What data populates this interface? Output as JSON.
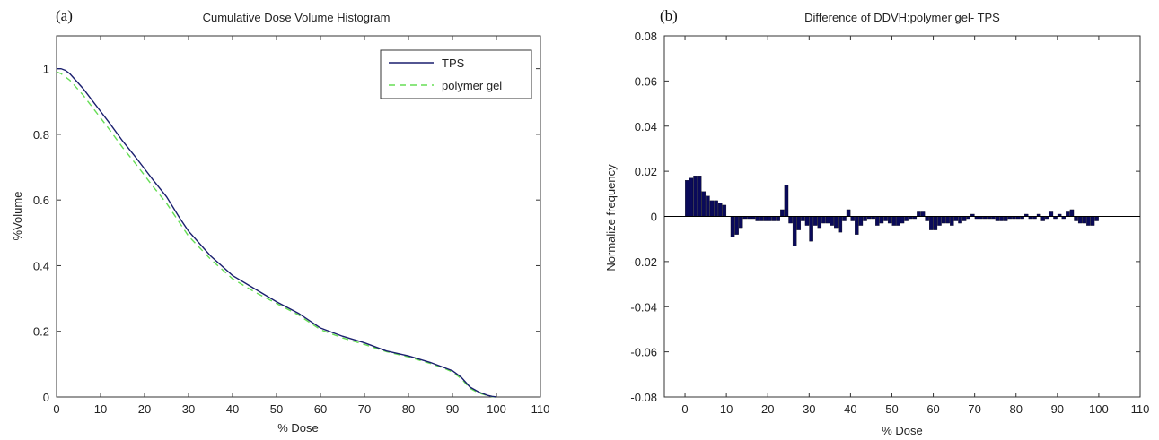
{
  "chart_data": [
    {
      "type": "line",
      "panel_label": "(a)",
      "title": "Cumulative Dose Volume Histogram",
      "xlabel": "% Dose",
      "ylabel": "%Volume",
      "xlim": [
        0,
        110
      ],
      "ylim": [
        0,
        1.1
      ],
      "xticks": [
        0,
        10,
        20,
        30,
        40,
        50,
        60,
        70,
        80,
        90,
        100,
        110
      ],
      "yticks": [
        0,
        0.2,
        0.4,
        0.6,
        0.8,
        1
      ],
      "ytick_labels": [
        "0",
        "0.2",
        "0.4",
        "0.6",
        "0.8",
        "1"
      ],
      "grid": false,
      "legend_position": "top-right",
      "series": [
        {
          "name": "TPS",
          "color": "#1a1f6e",
          "style": "solid",
          "x": [
            0,
            1,
            2,
            3,
            4,
            5,
            6,
            8,
            10,
            12,
            15,
            18,
            20,
            22,
            25,
            28,
            30,
            35,
            40,
            45,
            50,
            55,
            60,
            65,
            70,
            75,
            80,
            85,
            88,
            90,
            92,
            94,
            96,
            98,
            99,
            100
          ],
          "y": [
            1.0,
            1.0,
            0.995,
            0.985,
            0.97,
            0.955,
            0.94,
            0.905,
            0.87,
            0.835,
            0.78,
            0.73,
            0.695,
            0.66,
            0.61,
            0.545,
            0.505,
            0.43,
            0.37,
            0.33,
            0.29,
            0.255,
            0.21,
            0.185,
            0.165,
            0.14,
            0.125,
            0.105,
            0.09,
            0.08,
            0.06,
            0.03,
            0.015,
            0.005,
            0.002,
            0.0
          ]
        },
        {
          "name": "polymer gel",
          "color": "#66dd55",
          "style": "dashed",
          "x": [
            0,
            1,
            2,
            3,
            4,
            5,
            6,
            8,
            10,
            12,
            15,
            18,
            20,
            22,
            25,
            28,
            30,
            35,
            40,
            45,
            50,
            55,
            60,
            65,
            70,
            75,
            80,
            85,
            88,
            90,
            92,
            94,
            96,
            98,
            99,
            100
          ],
          "y": [
            0.99,
            0.985,
            0.975,
            0.965,
            0.95,
            0.935,
            0.92,
            0.885,
            0.85,
            0.815,
            0.76,
            0.71,
            0.675,
            0.64,
            0.59,
            0.53,
            0.49,
            0.42,
            0.36,
            0.32,
            0.285,
            0.25,
            0.205,
            0.18,
            0.16,
            0.138,
            0.122,
            0.102,
            0.088,
            0.076,
            0.056,
            0.026,
            0.012,
            0.004,
            0.001,
            0.0
          ]
        }
      ]
    },
    {
      "type": "bar",
      "panel_label": "(b)",
      "title": "Difference of DDVH:polymer gel- TPS",
      "xlabel": "% Dose",
      "ylabel": "Normalize frequency",
      "xlim": [
        -5,
        110
      ],
      "ylim": [
        -0.08,
        0.08
      ],
      "xticks": [
        0,
        10,
        20,
        30,
        40,
        50,
        60,
        70,
        80,
        90,
        100,
        110
      ],
      "yticks": [
        -0.08,
        -0.06,
        -0.04,
        -0.02,
        0,
        0.02,
        0.04,
        0.06,
        0.08
      ],
      "ytick_labels": [
        "-0.08",
        "-0.06",
        "-0.04",
        "-0.02",
        "0",
        "0.02",
        "0.04",
        "0.06",
        "0.08"
      ],
      "grid": false,
      "bar_color": "#0a0a5a",
      "zero_line": true,
      "x": [
        0,
        1,
        2,
        3,
        4,
        5,
        6,
        7,
        8,
        9,
        10,
        11,
        12,
        13,
        14,
        15,
        16,
        17,
        18,
        19,
        20,
        21,
        22,
        23,
        24,
        25,
        26,
        27,
        28,
        29,
        30,
        31,
        32,
        33,
        34,
        35,
        36,
        37,
        38,
        39,
        40,
        41,
        42,
        43,
        44,
        45,
        46,
        47,
        48,
        49,
        50,
        51,
        52,
        53,
        54,
        55,
        56,
        57,
        58,
        59,
        60,
        61,
        62,
        63,
        64,
        65,
        66,
        67,
        68,
        69,
        70,
        71,
        72,
        73,
        74,
        75,
        76,
        77,
        78,
        79,
        80,
        81,
        82,
        83,
        84,
        85,
        86,
        87,
        88,
        89,
        90,
        91,
        92,
        93,
        94,
        95,
        96,
        97,
        98,
        99
      ],
      "values": [
        0.016,
        0.017,
        0.018,
        0.018,
        0.011,
        0.009,
        0.007,
        0.007,
        0.006,
        0.005,
        0.0,
        -0.009,
        -0.008,
        -0.005,
        -0.001,
        -0.001,
        -0.001,
        -0.002,
        -0.002,
        -0.002,
        -0.002,
        -0.002,
        -0.002,
        0.003,
        0.014,
        -0.003,
        -0.013,
        -0.006,
        -0.002,
        -0.004,
        -0.011,
        -0.004,
        -0.005,
        -0.003,
        -0.003,
        -0.004,
        -0.005,
        -0.007,
        -0.002,
        0.003,
        -0.002,
        -0.008,
        -0.004,
        -0.002,
        -0.001,
        -0.001,
        -0.004,
        -0.003,
        -0.002,
        -0.003,
        -0.004,
        -0.004,
        -0.003,
        -0.002,
        -0.001,
        -0.001,
        0.002,
        0.002,
        -0.002,
        -0.006,
        -0.006,
        -0.004,
        -0.003,
        -0.003,
        -0.004,
        -0.002,
        -0.003,
        -0.002,
        -0.001,
        0.001,
        -0.001,
        -0.001,
        -0.001,
        -0.001,
        -0.001,
        -0.002,
        -0.002,
        -0.002,
        -0.001,
        -0.001,
        -0.001,
        -0.001,
        0.001,
        -0.001,
        -0.001,
        0.001,
        -0.002,
        -0.001,
        0.002,
        -0.001,
        0.001,
        -0.001,
        0.002,
        0.003,
        -0.002,
        -0.003,
        -0.003,
        -0.004,
        -0.004,
        -0.002
      ]
    }
  ]
}
